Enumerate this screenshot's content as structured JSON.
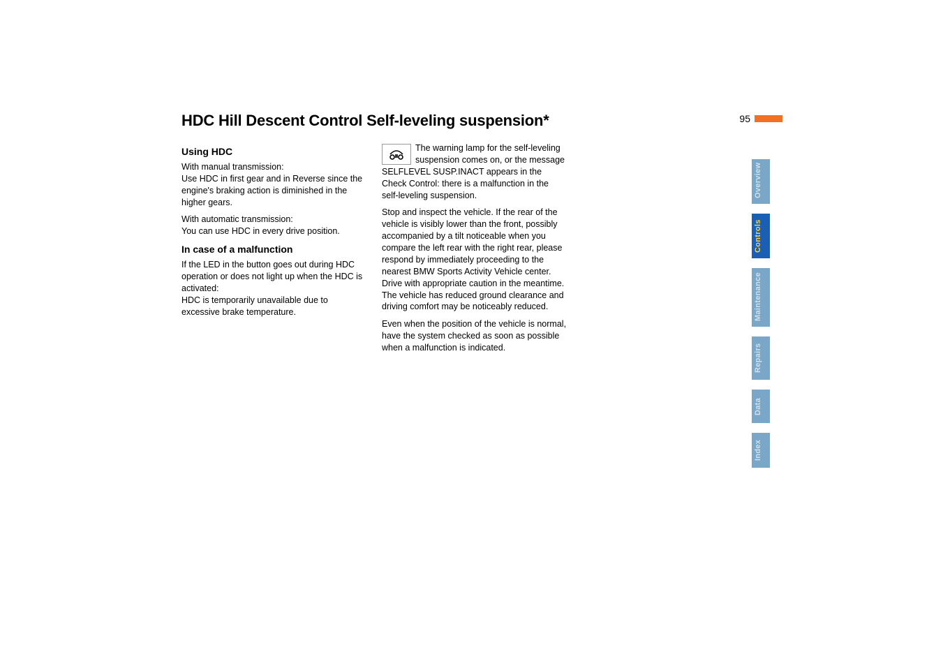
{
  "page_number": "95",
  "title": "HDC Hill Descent Control  Self-leveling suspension*",
  "col1": {
    "h1": "Using HDC",
    "p1": "With manual transmission:\nUse HDC in first gear and in Reverse since the engine's braking action is diminished in the higher gears.",
    "p2": "With automatic transmission:\nYou can use HDC in every drive position.",
    "h2": "In case of a malfunction",
    "p3": "If the LED in the button goes out during HDC operation or does not light up when the HDC is activated:\nHDC is temporarily unavailable due to excessive brake temperature."
  },
  "col2": {
    "p1": "The warning lamp for the self-leveling suspension comes on, or the message SELFLEVEL SUSP.INACT appears in the Check Control: there is a malfunction in the self-leveling suspension.",
    "p2": "Stop and inspect the vehicle. If the rear of the vehicle is visibly lower than the front, possibly accompanied by a tilt noticeable when you compare the left rear with the right rear, please respond by immediately proceeding to the nearest BMW Sports Activity Vehicle center. Drive with appropriate caution in the meantime. The vehicle has reduced ground clearance and driving comfort may be noticeably reduced.",
    "p3": "Even when the position of the vehicle is normal, have the system checked as soon as possible when a malfunction is indicated."
  },
  "tabs": [
    {
      "label": "Overview",
      "bg": "#7aa7c7",
      "fg": "#cfe0ec"
    },
    {
      "label": "Controls",
      "bg": "#1b5fb4",
      "fg": "#f3d24a"
    },
    {
      "label": "Maintenance",
      "bg": "#7aa7c7",
      "fg": "#cfe0ec"
    },
    {
      "label": "Repairs",
      "bg": "#7aa7c7",
      "fg": "#cfe0ec"
    },
    {
      "label": "Data",
      "bg": "#7aa7c7",
      "fg": "#cfe0ec"
    },
    {
      "label": "Index",
      "bg": "#7aa7c7",
      "fg": "#cfe0ec"
    }
  ],
  "colors": {
    "accent": "#f36f21",
    "title": "#000000",
    "body": "#000000"
  }
}
